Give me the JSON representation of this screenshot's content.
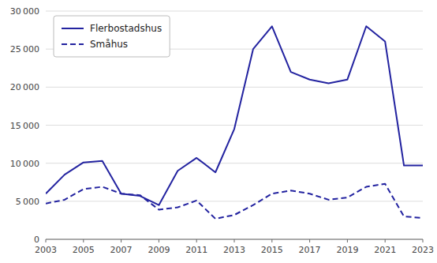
{
  "chart_data": {
    "type": "line",
    "x": [
      2003,
      2004,
      2005,
      2006,
      2007,
      2008,
      2009,
      2010,
      2011,
      2012,
      2013,
      2014,
      2015,
      2016,
      2017,
      2018,
      2019,
      2020,
      2021,
      2022,
      2023
    ],
    "series": [
      {
        "name": "Flerbostadshus",
        "color": "#2323a0",
        "line_style": "solid",
        "values": [
          6000,
          8500,
          10100,
          10300,
          6000,
          5700,
          4500,
          9000,
          10700,
          8800,
          14500,
          25000,
          28000,
          22000,
          21000,
          20500,
          21000,
          28000,
          26000,
          9700,
          9700
        ]
      },
      {
        "name": "Småhus",
        "color": "#2323a0",
        "line_style": "dashed",
        "values": [
          4700,
          5200,
          6600,
          6900,
          6000,
          5800,
          3900,
          4200,
          5100,
          2700,
          3200,
          4500,
          6000,
          6400,
          6000,
          5200,
          5500,
          6900,
          7300,
          3000,
          2800
        ]
      }
    ],
    "xlim": [
      2003,
      2023
    ],
    "xticks": [
      2003,
      2005,
      2007,
      2009,
      2011,
      2013,
      2015,
      2017,
      2019,
      2021,
      2023
    ],
    "ylim": [
      0,
      30000
    ],
    "yticks": [
      0,
      {
        "value": 5000,
        "label": "5 000"
      },
      {
        "value": 10000,
        "label": "10 000"
      },
      {
        "value": 15000,
        "label": "15 000"
      },
      {
        "value": 20000,
        "label": "20 000"
      },
      {
        "value": 25000,
        "label": "25 000"
      },
      {
        "value": 30000,
        "label": "30 000"
      }
    ],
    "grid": true,
    "legend": "upper left"
  }
}
